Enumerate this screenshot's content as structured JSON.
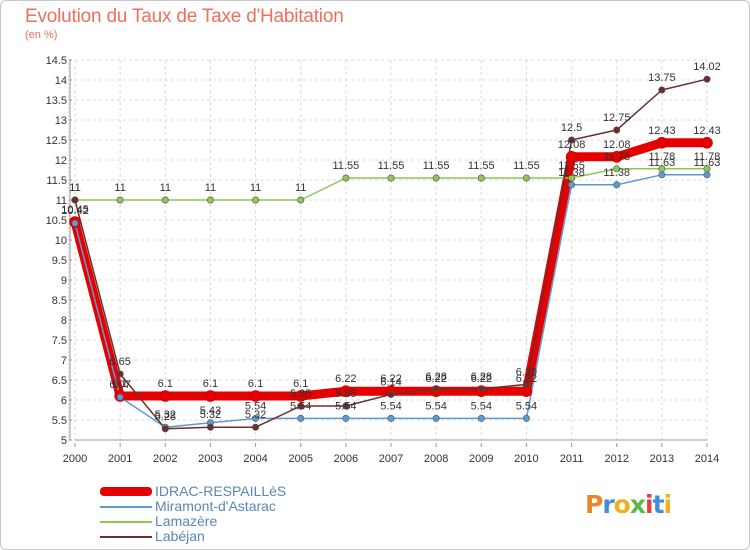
{
  "title": "Evolution du Taux de Taxe d'Habitation",
  "subtitle": "(en %)",
  "chart_data": {
    "type": "line",
    "title": "Evolution du Taux de Taxe d'Habitation",
    "ylabel": "(en %)",
    "xlabel": "",
    "ylim": [
      5,
      14.5
    ],
    "yticks": [
      "5",
      "5.5",
      "6",
      "6.5",
      "7",
      "7.5",
      "8",
      "8.5",
      "9",
      "9.5",
      "10",
      "10.5",
      "11",
      "11.5",
      "12",
      "12.5",
      "13",
      "13.5",
      "14",
      "14.5"
    ],
    "x": [
      "2000",
      "2001",
      "2002",
      "2003",
      "2004",
      "2005",
      "2006",
      "2007",
      "2008",
      "2009",
      "2010",
      "2011",
      "2012",
      "2013",
      "2014"
    ],
    "grid": true,
    "legend_position": "bottom-left",
    "series": [
      {
        "name": "IDRAC-RESPAILLèS",
        "color": "#e60000",
        "values": [
          10.45,
          6.1,
          6.1,
          6.1,
          6.1,
          6.1,
          6.22,
          6.22,
          6.22,
          6.22,
          6.22,
          12.08,
          12.08,
          12.43,
          12.43
        ],
        "labels": [
          "10.45",
          "6.1",
          "6.1",
          "6.1",
          "6.1",
          "6.1",
          "6.22",
          "6.22",
          "6.22",
          "6.22",
          "6.22",
          "12.08",
          "12.08",
          "12.43",
          "12.43"
        ]
      },
      {
        "name": "Miramont-d'Astarac",
        "color": "#5b9bd5",
        "values": [
          10.42,
          6.07,
          5.32,
          5.43,
          5.54,
          5.54,
          5.54,
          5.54,
          5.54,
          5.54,
          5.54,
          11.38,
          11.38,
          11.63,
          11.63
        ],
        "labels": [
          "10.42",
          "6.07",
          "5.32",
          "5.43",
          "5.54",
          "5.54",
          "5.54",
          "5.54",
          "5.54",
          "5.54",
          "5.54",
          "11.38",
          "11.38",
          "11.63",
          "11.63"
        ]
      },
      {
        "name": "Lamazère",
        "color": "#8fc751",
        "values": [
          11,
          11,
          11,
          11,
          11,
          11,
          11.55,
          11.55,
          11.55,
          11.55,
          11.55,
          11.55,
          11.78,
          11.78,
          11.78
        ],
        "labels": [
          "11",
          "11",
          "11",
          "11",
          "11",
          "11",
          "11.55",
          "11.55",
          "11.55",
          "11.55",
          "11.55",
          "11.55",
          "11.78",
          "11.78",
          "11.78"
        ]
      },
      {
        "name": "Labéjan",
        "color": "#6e2d2d",
        "values": [
          11,
          6.65,
          5.28,
          5.32,
          5.32,
          5.85,
          5.85,
          6.14,
          6.28,
          6.28,
          6.39,
          12.5,
          12.75,
          13.75,
          14.02
        ],
        "labels": [
          "11",
          "6.65",
          "5.28",
          "5.32",
          "5.32",
          "5.85",
          "5.85",
          "6.14",
          "6.28",
          "6.28",
          "6.39",
          "12.5",
          "12.75",
          "13.75",
          "14.02"
        ]
      }
    ]
  },
  "legend": [
    {
      "label": "IDRAC-RESPAILLèS",
      "color": "#e60000"
    },
    {
      "label": "Miramont-d'Astarac",
      "color": "#5b9bd5"
    },
    {
      "label": "Lamazère",
      "color": "#8fc751"
    },
    {
      "label": "Labéjan",
      "color": "#6e2d2d"
    }
  ],
  "logo": {
    "text": "Proxiti",
    "colors": [
      "#e8862a",
      "#3e8fd6",
      "#f2b01e",
      "#59b947",
      "#e4413a",
      "#3e8fd6",
      "#f2b01e"
    ]
  }
}
